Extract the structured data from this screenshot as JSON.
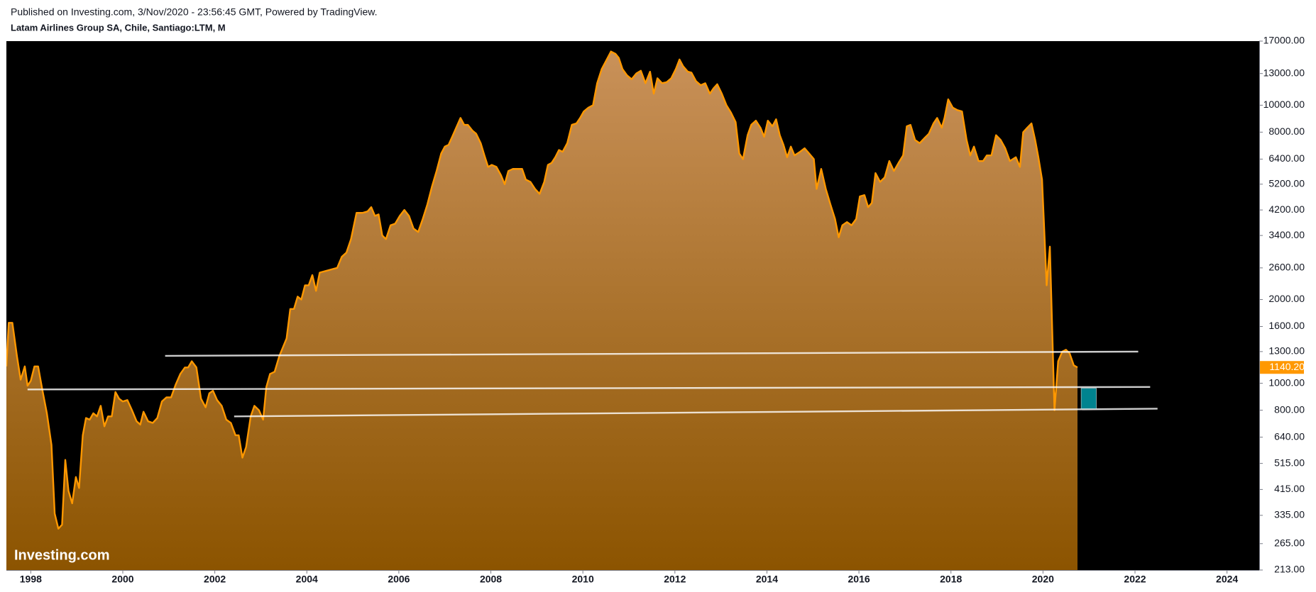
{
  "chart_data": {
    "type": "area",
    "header": "Published on Investing.com, 3/Nov/2020 - 23:56:45 GMT, Powered by TradingView.",
    "title": "Latam Airlines Group SA, Chile, Santiago:LTM, M",
    "watermark": "Investing.com",
    "log_scale": true,
    "color": "#ff9800",
    "xlim": [
      1997.47,
      2024.7
    ],
    "ylim": [
      213,
      17000
    ],
    "xticks": [
      1998,
      2000,
      2002,
      2004,
      2006,
      2008,
      2010,
      2012,
      2014,
      2016,
      2018,
      2020,
      2022,
      2024
    ],
    "yticks": [
      {
        "value": 17000,
        "label": "17000.00"
      },
      {
        "value": 13000,
        "label": "13000.00"
      },
      {
        "value": 10000,
        "label": "10000.00"
      },
      {
        "value": 8000,
        "label": "8000.00"
      },
      {
        "value": 6400,
        "label": "6400.00"
      },
      {
        "value": 5200,
        "label": "5200.00"
      },
      {
        "value": 4200,
        "label": "4200.00"
      },
      {
        "value": 3400,
        "label": "3400.00"
      },
      {
        "value": 2600,
        "label": "2600.00"
      },
      {
        "value": 2000,
        "label": "2000.00"
      },
      {
        "value": 1600,
        "label": "1600.00"
      },
      {
        "value": 1300,
        "label": "1300.00"
      },
      {
        "value": 1000,
        "label": "1000.00"
      },
      {
        "value": 800,
        "label": "800.00"
      },
      {
        "value": 640,
        "label": "640.00"
      },
      {
        "value": 515,
        "label": "515.00"
      },
      {
        "value": 415,
        "label": "415.00"
      },
      {
        "value": 335,
        "label": "335.00"
      },
      {
        "value": 265,
        "label": "265.00"
      },
      {
        "value": 213,
        "label": "213.00"
      }
    ],
    "last_price": {
      "value": 1140.2,
      "label": "1140.20",
      "color": "#ff9800"
    },
    "x": [
      1997.47,
      1997.52,
      1997.6,
      1997.7,
      1997.78,
      1997.87,
      1997.93,
      1998.0,
      1998.08,
      1998.16,
      1998.25,
      1998.35,
      1998.45,
      1998.52,
      1998.6,
      1998.68,
      1998.75,
      1998.82,
      1998.9,
      1998.98,
      1999.05,
      1999.13,
      1999.2,
      1999.28,
      1999.36,
      1999.44,
      1999.52,
      1999.6,
      1999.68,
      1999.76,
      1999.84,
      1999.92,
      2000.0,
      2000.1,
      2000.2,
      2000.3,
      2000.38,
      2000.45,
      2000.55,
      2000.65,
      2000.75,
      2000.85,
      2000.95,
      2001.05,
      2001.15,
      2001.25,
      2001.35,
      2001.42,
      2001.5,
      2001.6,
      2001.7,
      2001.8,
      2001.88,
      2001.96,
      2002.05,
      2002.15,
      2002.25,
      2002.35,
      2002.45,
      2002.52,
      2002.6,
      2002.68,
      2002.78,
      2002.86,
      2002.96,
      2003.05,
      2003.12,
      2003.2,
      2003.3,
      2003.4,
      2003.56,
      2003.64,
      2003.72,
      2003.8,
      2003.88,
      2003.96,
      2004.04,
      2004.12,
      2004.2,
      2004.28,
      2004.66,
      2004.76,
      2004.86,
      2004.96,
      2005.08,
      2005.21,
      2005.32,
      2005.4,
      2005.48,
      2005.56,
      2005.64,
      2005.72,
      2005.82,
      2005.92,
      2006.02,
      2006.12,
      2006.22,
      2006.32,
      2006.42,
      2006.52,
      2006.62,
      2006.72,
      2006.82,
      2006.92,
      2007.0,
      2007.08,
      2007.16,
      2007.26,
      2007.34,
      2007.42,
      2007.5,
      2007.6,
      2007.68,
      2007.78,
      2007.86,
      2007.94,
      2008.02,
      2008.12,
      2008.22,
      2008.3,
      2008.38,
      2008.48,
      2008.58,
      2008.68,
      2008.76,
      2008.86,
      2008.96,
      2009.06,
      2009.16,
      2009.24,
      2009.32,
      2009.4,
      2009.48,
      2009.56,
      2009.66,
      2009.76,
      2009.86,
      2009.94,
      2010.02,
      2010.12,
      2010.22,
      2010.31,
      2010.41,
      2010.51,
      2010.61,
      2010.71,
      2010.78,
      2010.86,
      2010.96,
      2011.06,
      2011.16,
      2011.26,
      2011.36,
      2011.46,
      2011.54,
      2011.62,
      2011.72,
      2011.82,
      2011.92,
      2012.02,
      2012.1,
      2012.18,
      2012.28,
      2012.36,
      2012.46,
      2012.56,
      2012.66,
      2012.76,
      2012.84,
      2012.92,
      2013.02,
      2013.12,
      2013.22,
      2013.32,
      2013.4,
      2013.48,
      2013.58,
      2013.66,
      2013.76,
      2013.86,
      2013.94,
      2014.02,
      2014.12,
      2014.2,
      2014.28,
      2014.36,
      2014.44,
      2014.52,
      2014.6,
      2014.72,
      2014.82,
      2014.92,
      2015.02,
      2015.08,
      2015.18,
      2015.28,
      2015.38,
      2015.48,
      2015.56,
      2015.64,
      2015.74,
      2015.84,
      2015.94,
      2016.02,
      2016.12,
      2016.2,
      2016.28,
      2016.36,
      2016.46,
      2016.56,
      2016.66,
      2016.76,
      2016.86,
      2016.96,
      2017.04,
      2017.12,
      2017.22,
      2017.32,
      2017.42,
      2017.52,
      2017.62,
      2017.7,
      2017.8,
      2017.86,
      2017.94,
      2018.04,
      2018.14,
      2018.24,
      2018.34,
      2018.42,
      2018.5,
      2018.6,
      2018.7,
      2018.78,
      2018.88,
      2018.98,
      2019.08,
      2019.18,
      2019.28,
      2019.41,
      2019.5,
      2019.57,
      2019.66,
      2019.75,
      2019.83,
      2019.9,
      2019.98,
      2020.08,
      2020.15,
      2020.25,
      2020.33,
      2020.42,
      2020.5,
      2020.58,
      2020.67,
      2020.75
    ],
    "values": [
      1150,
      1650,
      1650,
      1250,
      1030,
      1150,
      980,
      1020,
      1150,
      1150,
      950,
      780,
      600,
      340,
      300,
      310,
      530,
      410,
      370,
      460,
      420,
      650,
      750,
      740,
      780,
      760,
      830,
      700,
      760,
      760,
      930,
      880,
      860,
      870,
      800,
      730,
      710,
      790,
      730,
      720,
      750,
      860,
      890,
      890,
      990,
      1080,
      1140,
      1140,
      1200,
      1140,
      880,
      820,
      920,
      940,
      870,
      830,
      740,
      720,
      650,
      650,
      540,
      590,
      760,
      830,
      800,
      740,
      970,
      1080,
      1100,
      1250,
      1450,
      1850,
      1850,
      2050,
      2000,
      2250,
      2250,
      2450,
      2150,
      2500,
      2600,
      2850,
      2950,
      3300,
      4100,
      4100,
      4150,
      4300,
      4000,
      4050,
      3400,
      3300,
      3700,
      3750,
      4000,
      4200,
      4000,
      3600,
      3500,
      3900,
      4400,
      5100,
      5800,
      6700,
      7100,
      7200,
      7700,
      8400,
      9000,
      8500,
      8500,
      8100,
      7900,
      7300,
      6600,
      6000,
      6100,
      6000,
      5600,
      5200,
      5800,
      5900,
      5900,
      5900,
      5400,
      5300,
      5000,
      4800,
      5300,
      6100,
      6200,
      6500,
      6900,
      6800,
      7300,
      8500,
      8600,
      9000,
      9500,
      9800,
      10000,
      12000,
      13500,
      14500,
      15600,
      15300,
      14800,
      13500,
      12800,
      12400,
      13000,
      13300,
      12000,
      13200,
      11000,
      12500,
      12000,
      12100,
      12500,
      13500,
      14600,
      13800,
      13200,
      13100,
      12200,
      11800,
      12000,
      11000,
      11500,
      11900,
      11000,
      10000,
      9400,
      8700,
      6700,
      6400,
      7800,
      8500,
      8800,
      8300,
      7700,
      8800,
      8400,
      8900,
      7800,
      7200,
      6500,
      7100,
      6600,
      6800,
      7000,
      6700,
      6400,
      5000,
      5900,
      5000,
      4400,
      3900,
      3350,
      3700,
      3800,
      3700,
      3900,
      4700,
      4750,
      4300,
      4450,
      5700,
      5300,
      5500,
      6300,
      5800,
      6200,
      6600,
      8400,
      8500,
      7500,
      7300,
      7600,
      7900,
      8600,
      9000,
      8300,
      9000,
      10500,
      9800,
      9600,
      9500,
      7500,
      6600,
      7100,
      6300,
      6300,
      6600,
      6600,
      7800,
      7500,
      7000,
      6300,
      6500,
      6000,
      8000,
      8300,
      8600,
      7500,
      6500,
      5400,
      2250,
      3100,
      800,
      1200,
      1300,
      1320,
      1280,
      1160,
      1140.2
    ],
    "trendlines": [
      {
        "x": [
          2000.92,
          2022.07
        ],
        "y": [
          1255,
          1300
        ],
        "color": "#ffffff"
      },
      {
        "x": [
          1997.93,
          2022.33
        ],
        "y": [
          950,
          970
        ],
        "color": "#ffffff"
      },
      {
        "x": [
          2002.42,
          2022.49
        ],
        "y": [
          760,
          810
        ],
        "color": "#ffffff"
      }
    ],
    "zone": {
      "x": [
        2020.83,
        2021.16
      ],
      "y": [
        810,
        960
      ],
      "color": "#00838f"
    }
  }
}
